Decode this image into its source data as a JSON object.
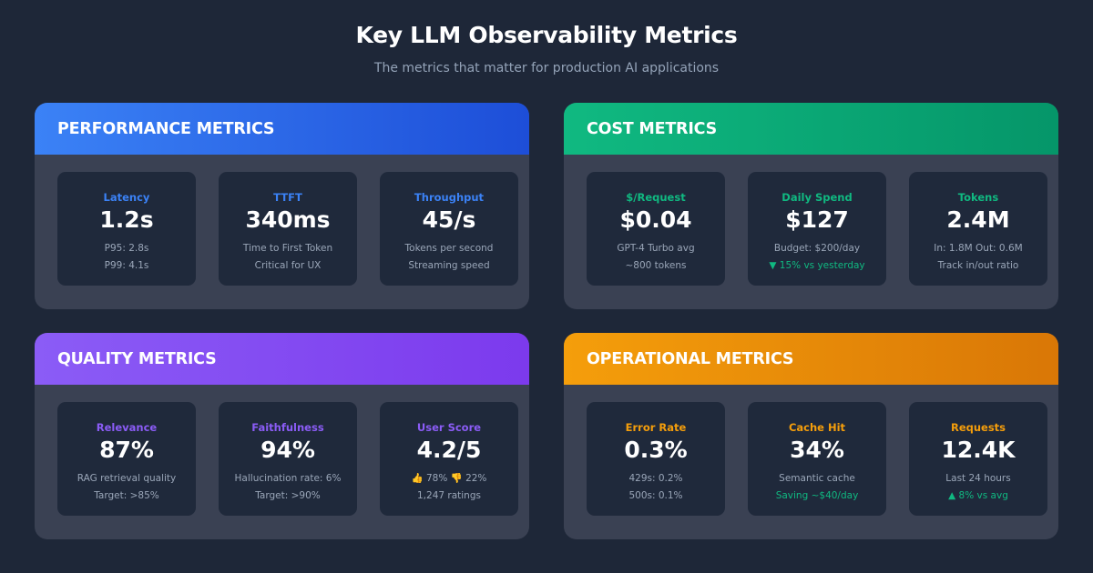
{
  "header": {
    "title": "Key LLM Observability Metrics",
    "subtitle": "The metrics that matter for production AI applications"
  },
  "colors": {
    "performance": "#3b82f6",
    "cost": "#10b981",
    "quality": "#8b5cf6",
    "operational": "#f59e0b",
    "positive": "#10b981"
  },
  "panels": [
    {
      "title": "PERFORMANCE METRICS",
      "cards": [
        {
          "label": "Latency",
          "value": "1.2s",
          "line1": "P95: 2.8s",
          "line2": "P99: 4.1s"
        },
        {
          "label": "TTFT",
          "value": "340ms",
          "line1": "Time to First Token",
          "line2": "Critical for UX"
        },
        {
          "label": "Throughput",
          "value": "45/s",
          "line1": "Tokens per second",
          "line2": "Streaming speed"
        }
      ]
    },
    {
      "title": "COST METRICS",
      "cards": [
        {
          "label": "$/Request",
          "value": "$0.04",
          "line1": "GPT-4 Turbo avg",
          "line2": "~800 tokens"
        },
        {
          "label": "Daily Spend",
          "value": "$127",
          "line1": "Budget: $200/day",
          "line2": "▼ 15% vs yesterday"
        },
        {
          "label": "Tokens",
          "value": "2.4M",
          "line1": "In: 1.8M Out: 0.6M",
          "line2": "Track in/out ratio"
        }
      ]
    },
    {
      "title": "QUALITY METRICS",
      "cards": [
        {
          "label": "Relevance",
          "value": "87%",
          "line1": "RAG retrieval quality",
          "line2": "Target: >85%"
        },
        {
          "label": "Faithfulness",
          "value": "94%",
          "line1": "Hallucination rate: 6%",
          "line2": "Target: >90%"
        },
        {
          "label": "User Score",
          "value": "4.2/5",
          "line1": "👍 78% 👎 22%",
          "line2": "1,247 ratings"
        }
      ]
    },
    {
      "title": "OPERATIONAL METRICS",
      "cards": [
        {
          "label": "Error Rate",
          "value": "0.3%",
          "line1": "429s: 0.2%",
          "line2": "500s: 0.1%"
        },
        {
          "label": "Cache Hit",
          "value": "34%",
          "line1": "Semantic cache",
          "line2": "Saving ~$40/day"
        },
        {
          "label": "Requests",
          "value": "12.4K",
          "line1": "Last 24 hours",
          "line2": "▲ 8% vs avg"
        }
      ]
    }
  ]
}
